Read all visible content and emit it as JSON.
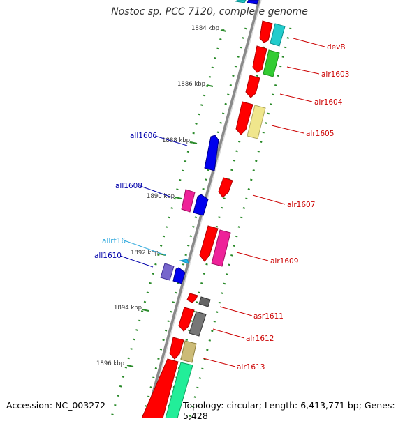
{
  "title": "Nostoc sp. PCC 7120, complete genome",
  "footer": {
    "accession": "Accession: NC_003272",
    "summary": "Topology: circular; Length: 6,413,771 bp; Genes: 5,428"
  },
  "scale": {
    "unit": "kbp",
    "ticks": [
      {
        "label": "1884 kbp"
      },
      {
        "label": "1886 kbp"
      },
      {
        "label": "1888 kbp"
      },
      {
        "label": "1890 kbp"
      },
      {
        "label": "1892 kbp"
      },
      {
        "label": "1894 kbp"
      },
      {
        "label": "1896 kbp"
      }
    ]
  },
  "colors": {
    "backbone": "#8a8a8a",
    "dots": "#2a8a2a",
    "forward_label": "#cc0000",
    "reverse_label": "#0000aa",
    "rna_label": "#33aadd"
  },
  "genes": {
    "forward": [
      {
        "label": "devB"
      },
      {
        "label": "alr1603"
      },
      {
        "label": "alr1604"
      },
      {
        "label": "alr1605"
      },
      {
        "label": "alr1607"
      },
      {
        "label": "alr1609"
      },
      {
        "label": "asr1611"
      },
      {
        "label": "alr1612"
      },
      {
        "label": "alr1613"
      }
    ],
    "reverse": [
      {
        "label": "all1606"
      },
      {
        "label": "all1608"
      },
      {
        "label": "allrt16"
      },
      {
        "label": "all1610"
      }
    ]
  }
}
